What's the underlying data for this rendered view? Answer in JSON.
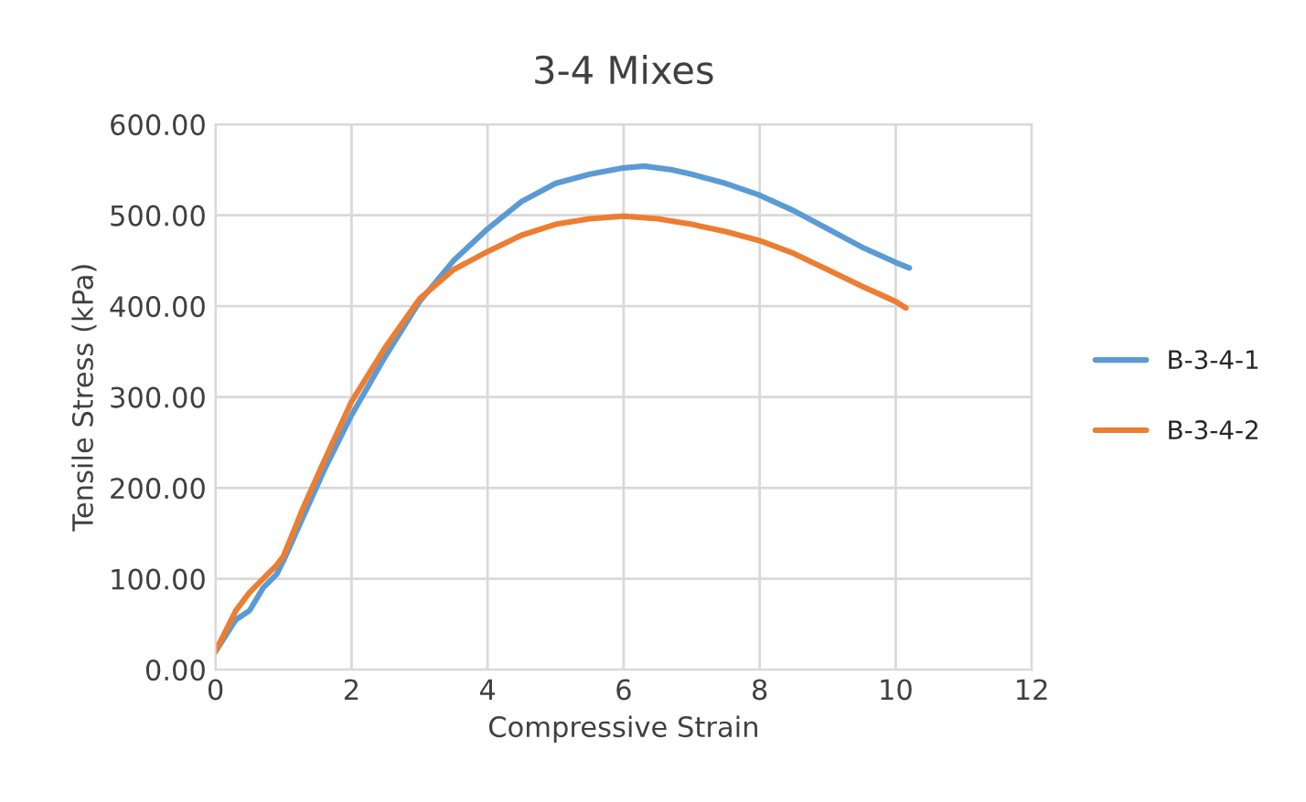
{
  "chart_data": {
    "type": "line",
    "title": "3-4 Mixes",
    "xlabel": "Compressive Strain",
    "ylabel": "Tensile Stress (kPa)",
    "xlim": [
      0,
      12
    ],
    "xticks": [
      0,
      2,
      4,
      6,
      8,
      10,
      12
    ],
    "ylim": [
      0,
      600
    ],
    "yticks": [
      {
        "value": 0,
        "label": "0.00"
      },
      {
        "value": 100,
        "label": "100.00"
      },
      {
        "value": 200,
        "label": "200.00"
      },
      {
        "value": 300,
        "label": "300.00"
      },
      {
        "value": 400,
        "label": "400.00"
      },
      {
        "value": 500,
        "label": "500.00"
      },
      {
        "value": 600,
        "label": "600.00"
      }
    ],
    "grid": true,
    "legend": "right",
    "marker": "none",
    "line_style": "solid",
    "series": [
      {
        "name": "B-3-4-1",
        "color": "#5b9bd5",
        "x": [
          0,
          0.3,
          0.5,
          0.7,
          0.9,
          1.0,
          1.3,
          1.6,
          2,
          2.5,
          3,
          3.5,
          4,
          4.5,
          5,
          5.5,
          6,
          6.3,
          6.7,
          7,
          7.5,
          8,
          8.5,
          9,
          9.5,
          10,
          10.2
        ],
        "values": [
          20,
          55,
          65,
          90,
          105,
          120,
          170,
          220,
          280,
          345,
          405,
          450,
          485,
          515,
          535,
          545,
          552,
          554,
          550,
          545,
          535,
          522,
          505,
          485,
          465,
          448,
          442
        ]
      },
      {
        "name": "B-3-4-2",
        "color": "#ed7d31",
        "x": [
          0,
          0.3,
          0.5,
          0.7,
          0.9,
          1.0,
          1.3,
          1.6,
          2,
          2.5,
          3,
          3.5,
          4,
          4.5,
          5,
          5.5,
          6,
          6.5,
          7,
          7.5,
          8,
          8.5,
          9,
          9.5,
          10,
          10.15
        ],
        "values": [
          20,
          65,
          85,
          100,
          115,
          125,
          180,
          230,
          295,
          355,
          408,
          440,
          460,
          478,
          490,
          496,
          499,
          496,
          490,
          482,
          472,
          458,
          440,
          422,
          405,
          398
        ]
      }
    ]
  }
}
